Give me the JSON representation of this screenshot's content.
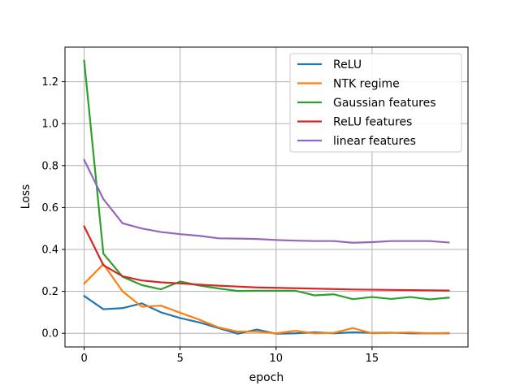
{
  "chart_data": {
    "type": "line",
    "title": "",
    "xlabel": "epoch",
    "ylabel": "Loss",
    "xlim": [
      -1,
      20
    ],
    "ylim": [
      -0.065,
      1.365
    ],
    "xticks": [
      0,
      5,
      10,
      15
    ],
    "yticks": [
      0.0,
      0.2,
      0.4,
      0.6,
      0.8,
      1.0,
      1.2
    ],
    "grid": true,
    "legend_position": "top-right",
    "x": [
      0,
      1,
      2,
      3,
      4,
      5,
      6,
      7,
      8,
      9,
      10,
      11,
      12,
      13,
      14,
      15,
      16,
      17,
      18,
      19
    ],
    "series": [
      {
        "name": "ReLU",
        "color": "#1f77b4",
        "values": [
          0.178,
          0.115,
          0.12,
          0.143,
          0.1,
          0.073,
          0.052,
          0.025,
          -0.002,
          0.018,
          -0.002,
          0.0,
          0.005,
          0.0,
          0.005,
          0.002,
          0.003,
          0.0,
          0.0,
          0.0
        ]
      },
      {
        "name": "NTK regime",
        "color": "#ff7f0e",
        "values": [
          0.237,
          0.33,
          0.2,
          0.127,
          0.132,
          0.098,
          0.065,
          0.028,
          0.008,
          0.008,
          0.0,
          0.012,
          0.0,
          0.002,
          0.025,
          0.0,
          0.002,
          0.004,
          0.0,
          0.002
        ]
      },
      {
        "name": "Gaussian features",
        "color": "#2ca02c",
        "values": [
          1.3,
          0.38,
          0.27,
          0.23,
          0.21,
          0.247,
          0.228,
          0.214,
          0.202,
          0.203,
          0.203,
          0.203,
          0.181,
          0.186,
          0.163,
          0.173,
          0.164,
          0.173,
          0.162,
          0.17
        ]
      },
      {
        "name": "ReLU features",
        "color": "#d62728",
        "values": [
          0.51,
          0.325,
          0.272,
          0.252,
          0.243,
          0.238,
          0.232,
          0.227,
          0.223,
          0.219,
          0.217,
          0.215,
          0.213,
          0.211,
          0.209,
          0.208,
          0.207,
          0.206,
          0.205,
          0.204
        ]
      },
      {
        "name": "linear features",
        "color": "#9467bd",
        "values": [
          0.827,
          0.64,
          0.525,
          0.5,
          0.483,
          0.473,
          0.465,
          0.453,
          0.452,
          0.45,
          0.445,
          0.442,
          0.44,
          0.44,
          0.432,
          0.435,
          0.44,
          0.44,
          0.44,
          0.433
        ]
      }
    ]
  }
}
